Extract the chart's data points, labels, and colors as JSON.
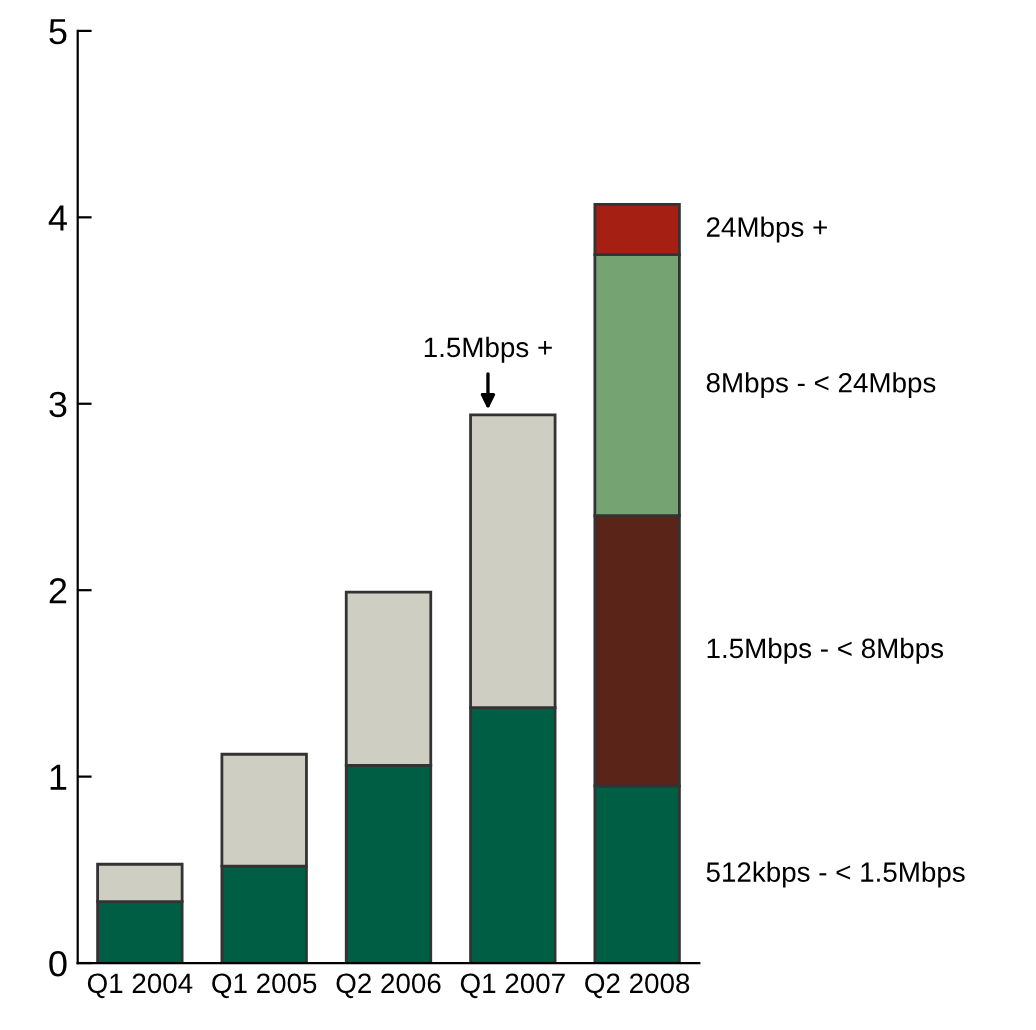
{
  "chart_data": {
    "type": "bar",
    "stacked": true,
    "categories": [
      "Q1 2004",
      "Q1 2005",
      "Q2 2006",
      "Q1 2007",
      "Q2 2008"
    ],
    "series": [
      {
        "name": "512kbps - < 1.5Mbps",
        "color": "#005e45",
        "values": [
          0.33,
          0.52,
          1.06,
          1.37,
          0.95
        ]
      },
      {
        "name": "1.5Mbps +",
        "color": "#cfcec2",
        "values": [
          0.2,
          0.6,
          0.93,
          1.57,
          null
        ]
      },
      {
        "name": "1.5Mbps - < 8Mbps",
        "color": "#5a2418",
        "values": [
          null,
          null,
          null,
          null,
          1.45
        ]
      },
      {
        "name": "8Mbps - < 24Mbps",
        "color": "#75a372",
        "values": [
          null,
          null,
          null,
          null,
          1.4
        ]
      },
      {
        "name": "24Mbps +",
        "color": "#a51f12",
        "values": [
          null,
          null,
          null,
          null,
          0.27
        ]
      }
    ],
    "ylim": [
      0,
      5
    ],
    "yticks": [
      0,
      1,
      2,
      3,
      4,
      5
    ],
    "grid": false,
    "legend": false
  }
}
